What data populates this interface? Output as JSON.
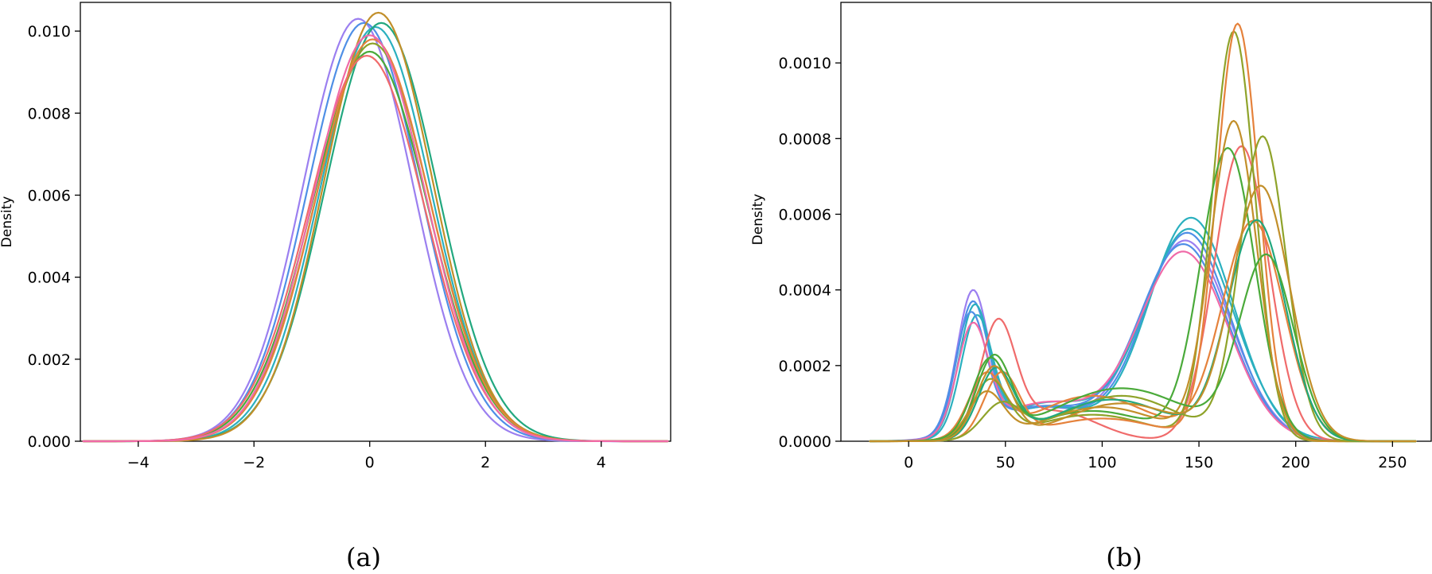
{
  "chart_data": [
    {
      "type": "line",
      "panel_label": "(a)",
      "xlabel": "",
      "ylabel": "Density",
      "xlim": [
        -5.0,
        5.2
      ],
      "ylim": [
        0,
        0.0107
      ],
      "xticks": [
        -4,
        -2,
        0,
        2,
        4
      ],
      "xtick_labels": [
        "−4",
        "−2",
        "0",
        "2",
        "4"
      ],
      "yticks": [
        0.0,
        0.002,
        0.004,
        0.006,
        0.008,
        0.01
      ],
      "ytick_labels": [
        "0.000",
        "0.002",
        "0.004",
        "0.006",
        "0.008",
        "0.010"
      ],
      "grid": false,
      "legend": "none",
      "colors": [
        "#9b7ff0",
        "#4f8fe6",
        "#2bb0bf",
        "#22a87f",
        "#4aaa3a",
        "#8fa32a",
        "#c28f2a",
        "#e5823c",
        "#f06b6b",
        "#f06aa8"
      ],
      "series": [
        {
          "peak_x": -0.2,
          "peak_y": 0.0103,
          "sigma": 0.95
        },
        {
          "peak_x": -0.1,
          "peak_y": 0.0102,
          "sigma": 0.97
        },
        {
          "peak_x": 0.1,
          "peak_y": 0.0101,
          "sigma": 0.96
        },
        {
          "peak_x": 0.2,
          "peak_y": 0.0102,
          "sigma": 0.97
        },
        {
          "peak_x": 0.0,
          "peak_y": 0.0095,
          "sigma": 1.0
        },
        {
          "peak_x": 0.05,
          "peak_y": 0.0097,
          "sigma": 0.99
        },
        {
          "peak_x": 0.15,
          "peak_y": 0.01045,
          "sigma": 0.94
        },
        {
          "peak_x": 0.05,
          "peak_y": 0.0098,
          "sigma": 0.98
        },
        {
          "peak_x": -0.05,
          "peak_y": 0.0094,
          "sigma": 1.0
        },
        {
          "peak_x": 0.0,
          "peak_y": 0.0099,
          "sigma": 0.97
        }
      ]
    },
    {
      "type": "line",
      "panel_label": "(b)",
      "xlabel": "",
      "ylabel": "Density",
      "xlim": [
        -35,
        270
      ],
      "ylim": [
        0,
        0.00116
      ],
      "xticks": [
        0,
        50,
        100,
        150,
        200,
        250
      ],
      "xtick_labels": [
        "0",
        "50",
        "100",
        "150",
        "200",
        "250"
      ],
      "yticks": [
        0.0,
        0.0002,
        0.0004,
        0.0006,
        0.0008,
        0.001
      ],
      "ytick_labels": [
        "0.0000",
        "0.0002",
        "0.0004",
        "0.0006",
        "0.0008",
        "0.0010"
      ],
      "grid": false,
      "legend": "none",
      "colors": [
        "#9b7ff0",
        "#4f8fe6",
        "#2bb0bf",
        "#22a87f",
        "#4aaa3a",
        "#8fa32a",
        "#c28f2a",
        "#e5823c",
        "#f06b6b",
        "#f06aa8"
      ],
      "series": [
        {
          "color_index": 0,
          "peaks": [
            [
              33,
              0.00036,
              8
            ],
            [
              65,
              9e-05,
              25
            ],
            [
              143,
              0.00053,
              23
            ]
          ]
        },
        {
          "color_index": 1,
          "peaks": [
            [
              33,
              0.00034,
              8
            ],
            [
              70,
              9e-05,
              25
            ],
            [
              144,
              0.00055,
              22
            ]
          ]
        },
        {
          "color_index": 2,
          "peaks": [
            [
              34,
              0.00033,
              8
            ],
            [
              70,
              9e-05,
              25
            ],
            [
              146,
              0.00059,
              22
            ]
          ]
        },
        {
          "color_index": 2,
          "peaks": [
            [
              35,
              0.0003,
              8
            ],
            [
              72,
              0.0001,
              25
            ],
            [
              145,
              0.00056,
              23
            ]
          ]
        },
        {
          "color_index": 1,
          "peaks": [
            [
              32,
              0.00031,
              8
            ],
            [
              68,
              9e-05,
              25
            ],
            [
              142,
              0.00052,
              23
            ]
          ]
        },
        {
          "color_index": 9,
          "peaks": [
            [
              33,
              0.00028,
              8
            ],
            [
              70,
              0.0001,
              25
            ],
            [
              142,
              0.0005,
              23
            ]
          ]
        },
        {
          "color_index": 8,
          "peaks": [
            [
              46,
              0.00029,
              9
            ],
            [
              75,
              8e-05,
              22
            ],
            [
              172,
              0.00078,
              14
            ]
          ]
        },
        {
          "color_index": 7,
          "peaks": [
            [
              40,
              0.00016,
              9
            ],
            [
              95,
              0.00012,
              30
            ],
            [
              178,
              0.00058,
              16
            ]
          ]
        },
        {
          "color_index": 5,
          "peaks": [
            [
              42,
              0.00015,
              9
            ],
            [
              95,
              7e-05,
              30
            ],
            [
              168,
              0.00108,
              11
            ]
          ]
        },
        {
          "color_index": 7,
          "peaks": [
            [
              48,
              0.00017,
              9
            ],
            [
              100,
              6e-05,
              30
            ],
            [
              170,
              0.0011,
              11
            ]
          ]
        },
        {
          "color_index": 4,
          "peaks": [
            [
              44,
              0.00021,
              9
            ],
            [
              95,
              8e-05,
              30
            ],
            [
              165,
              0.00077,
              14
            ]
          ]
        },
        {
          "color_index": 6,
          "peaks": [
            [
              40,
              0.00012,
              9
            ],
            [
              100,
              9e-05,
              30
            ],
            [
              168,
              0.00084,
              12
            ]
          ]
        },
        {
          "color_index": 5,
          "peaks": [
            [
              48,
              9e-05,
              10
            ],
            [
              110,
              0.00012,
              30
            ],
            [
              183,
              0.0008,
              12
            ]
          ]
        },
        {
          "color_index": 3,
          "peaks": [
            [
              45,
              0.00018,
              9
            ],
            [
              105,
              0.00011,
              30
            ],
            [
              180,
              0.00058,
              15
            ]
          ]
        },
        {
          "color_index": 4,
          "peaks": [
            [
              42,
              0.0002,
              9
            ],
            [
              110,
              0.00014,
              35
            ],
            [
              185,
              0.00048,
              14
            ]
          ]
        },
        {
          "color_index": 6,
          "peaks": [
            [
              44,
              0.00019,
              9
            ],
            [
              110,
              0.0001,
              30
            ],
            [
              182,
              0.00067,
              15
            ]
          ]
        }
      ]
    }
  ]
}
